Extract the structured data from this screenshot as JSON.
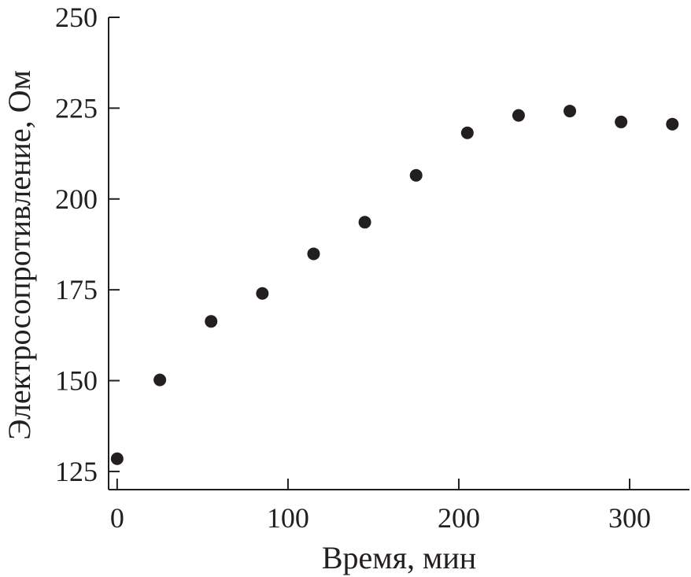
{
  "chart_data": {
    "type": "scatter",
    "xlabel": "Время, мин",
    "ylabel": "Электросопротивление, Ом",
    "xlim": [
      -5,
      335
    ],
    "ylim": [
      120,
      250
    ],
    "xticks": [
      0,
      100,
      200,
      300
    ],
    "yticks": [
      125,
      150,
      175,
      200,
      225,
      250
    ],
    "xtick_labels": [
      "0",
      "100",
      "200",
      "300"
    ],
    "ytick_labels": [
      "125",
      "150",
      "175",
      "200",
      "225",
      "250"
    ],
    "grid": false,
    "marker_color": "#231f20",
    "series": [
      {
        "x": [
          0,
          25,
          55,
          85,
          115,
          145,
          175,
          205,
          235,
          265,
          295,
          325
        ],
        "y": [
          128.5,
          150.2,
          166.3,
          174.0,
          184.9,
          193.6,
          206.5,
          218.2,
          223.0,
          224.2,
          221.2,
          220.6
        ]
      }
    ]
  }
}
